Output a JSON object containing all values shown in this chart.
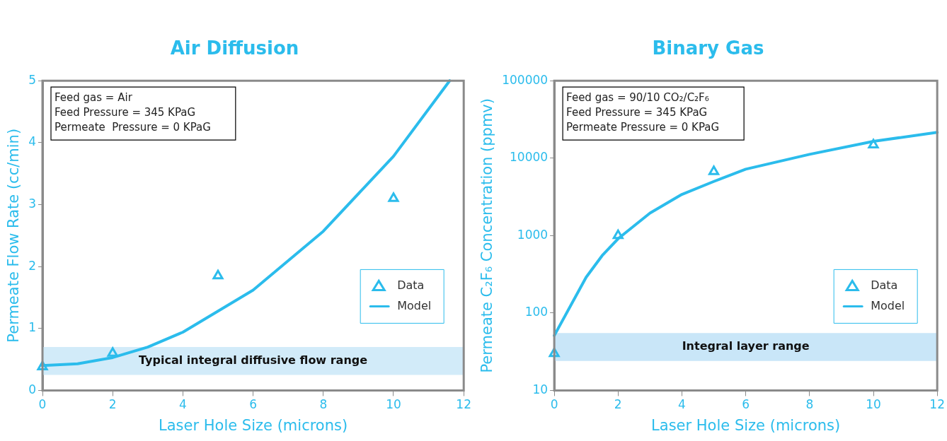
{
  "chart_data": [
    {
      "type": "line",
      "title": "Air Diffusion",
      "xlabel": "Laser Hole Size (microns)",
      "ylabel": "Permeate Flow Rate (cc/min)",
      "annotations": [
        "Feed gas = Air",
        "Feed Pressure = 345 KPaG",
        "Permeate  Pressure = 0 KPaG"
      ],
      "xlim": [
        0,
        12
      ],
      "xticks": [
        0,
        2,
        4,
        6,
        8,
        10,
        12
      ],
      "ylim": [
        0,
        5
      ],
      "yticks": [
        0,
        1,
        2,
        3,
        4,
        5
      ],
      "grid": false,
      "legend": "bottom right",
      "bands": [
        {
          "axis": "y",
          "from": 0.25,
          "to": 0.7,
          "label": "Typical integral diffusive flow range",
          "color": "#d2ebf9"
        }
      ],
      "series": [
        {
          "name": "Data",
          "type": "scatter",
          "marker": "triangle",
          "color": "#2bbcec",
          "x": [
            0,
            2,
            5,
            10
          ],
          "values": [
            0.38,
            0.6,
            1.85,
            3.1
          ]
        },
        {
          "name": "Model",
          "type": "line",
          "marker": "none",
          "color": "#2bbcec",
          "x": [
            0,
            1,
            2,
            3,
            4,
            5,
            6,
            8,
            10,
            11.6
          ],
          "values": [
            0.4,
            0.43,
            0.53,
            0.7,
            0.94,
            1.28,
            1.62,
            2.57,
            3.78,
            5
          ]
        }
      ]
    },
    {
      "type": "line",
      "title": "Binary Gas",
      "xlabel": "Laser Hole Size (microns)",
      "ylabel": "Permeate C₂F₆ Concentration (ppmv)",
      "annotations": [
        "Feed gas = 90/10 CO₂/C₂F₆",
        "Feed Pressure = 345 KPaG",
        "Permeate Pressure = 0 KPaG"
      ],
      "xlim": [
        0,
        12
      ],
      "xticks": [
        0,
        2,
        4,
        6,
        8,
        10,
        12
      ],
      "ylim": [
        10,
        100000
      ],
      "yticks": [
        10,
        100,
        1000,
        10000,
        100000
      ],
      "log": "y",
      "grid": false,
      "legend": "bottom right",
      "bands": [
        {
          "axis": "y",
          "from": 24,
          "to": 55,
          "label": "Integral layer range",
          "color": "#c9e6f8"
        }
      ],
      "series": [
        {
          "name": "Data",
          "type": "scatter",
          "marker": "triangle",
          "color": "#2bbcec",
          "x": [
            0,
            2,
            5,
            10
          ],
          "values": [
            30,
            1000,
            6700,
            14800
          ]
        },
        {
          "name": "Model",
          "type": "line",
          "marker": "none",
          "color": "#2bbcec",
          "x": [
            0,
            1,
            1.5,
            2,
            3,
            4,
            5,
            6,
            8,
            10,
            12
          ],
          "values": [
            51,
            290,
            550,
            910,
            1950,
            3400,
            5000,
            7200,
            11200,
            16500,
            21500
          ]
        }
      ]
    }
  ]
}
